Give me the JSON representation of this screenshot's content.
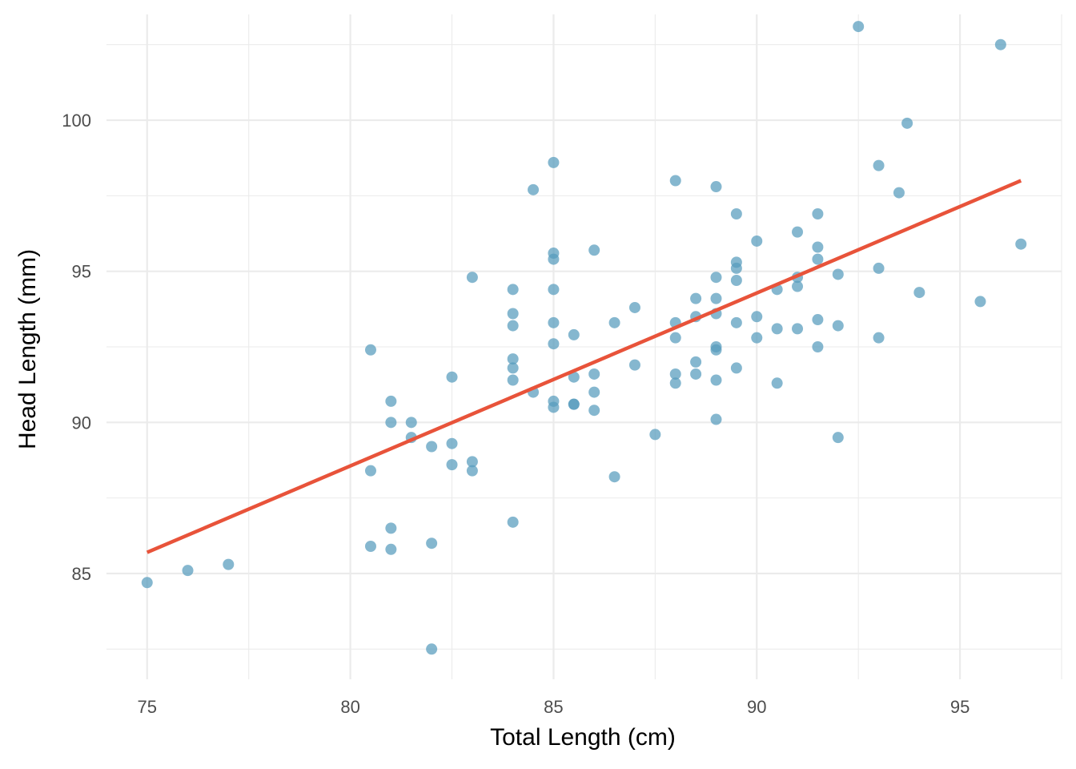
{
  "chart_data": {
    "type": "scatter",
    "title": "",
    "xlabel": "Total Length (cm)",
    "ylabel": "Head Length (mm)",
    "xlim": [
      74,
      97.5
    ],
    "ylim": [
      81.5,
      103.5
    ],
    "x_ticks": [
      75,
      80,
      85,
      90,
      95
    ],
    "y_ticks": [
      85,
      90,
      95,
      100
    ],
    "x_tick_labels": [
      "75",
      "80",
      "85",
      "90",
      "95"
    ],
    "y_tick_labels": [
      "85",
      "90",
      "95",
      "100"
    ],
    "grid": true,
    "point_color": "#569bbd",
    "line_color": "#e8533a",
    "points": [
      [
        75.0,
        84.7
      ],
      [
        76.0,
        85.1
      ],
      [
        77.0,
        85.3
      ],
      [
        80.5,
        92.4
      ],
      [
        80.5,
        88.4
      ],
      [
        80.5,
        85.9
      ],
      [
        81.0,
        90.7
      ],
      [
        81.0,
        90.0
      ],
      [
        81.0,
        86.5
      ],
      [
        81.0,
        85.8
      ],
      [
        81.5,
        90.0
      ],
      [
        81.5,
        89.5
      ],
      [
        82.0,
        89.2
      ],
      [
        82.0,
        86.0
      ],
      [
        82.0,
        82.5
      ],
      [
        82.5,
        91.5
      ],
      [
        82.5,
        89.3
      ],
      [
        82.5,
        88.6
      ],
      [
        83.0,
        94.8
      ],
      [
        83.0,
        88.7
      ],
      [
        83.0,
        88.4
      ],
      [
        84.0,
        94.4
      ],
      [
        84.0,
        93.6
      ],
      [
        84.0,
        93.2
      ],
      [
        84.0,
        92.1
      ],
      [
        84.0,
        91.8
      ],
      [
        84.0,
        91.4
      ],
      [
        84.0,
        86.7
      ],
      [
        84.5,
        97.7
      ],
      [
        84.5,
        91.0
      ],
      [
        85.0,
        98.6
      ],
      [
        85.0,
        95.6
      ],
      [
        85.0,
        95.4
      ],
      [
        85.0,
        94.4
      ],
      [
        85.0,
        93.3
      ],
      [
        85.0,
        92.6
      ],
      [
        85.0,
        90.7
      ],
      [
        85.0,
        90.5
      ],
      [
        85.5,
        92.9
      ],
      [
        85.5,
        91.5
      ],
      [
        85.5,
        90.6
      ],
      [
        85.5,
        90.6
      ],
      [
        86.0,
        95.7
      ],
      [
        86.0,
        91.6
      ],
      [
        86.0,
        91.0
      ],
      [
        86.0,
        90.4
      ],
      [
        86.5,
        93.3
      ],
      [
        86.5,
        88.2
      ],
      [
        87.0,
        93.8
      ],
      [
        87.0,
        91.9
      ],
      [
        87.5,
        89.6
      ],
      [
        88.0,
        98.0
      ],
      [
        88.0,
        93.3
      ],
      [
        88.0,
        92.8
      ],
      [
        88.0,
        91.6
      ],
      [
        88.0,
        91.3
      ],
      [
        88.5,
        94.1
      ],
      [
        88.5,
        93.5
      ],
      [
        88.5,
        92.0
      ],
      [
        88.5,
        91.6
      ],
      [
        89.0,
        97.8
      ],
      [
        89.0,
        94.8
      ],
      [
        89.0,
        94.1
      ],
      [
        89.0,
        93.6
      ],
      [
        89.0,
        92.5
      ],
      [
        89.0,
        92.4
      ],
      [
        89.0,
        91.4
      ],
      [
        89.0,
        90.1
      ],
      [
        89.5,
        96.9
      ],
      [
        89.5,
        95.3
      ],
      [
        89.5,
        95.1
      ],
      [
        89.5,
        94.7
      ],
      [
        89.5,
        93.3
      ],
      [
        89.5,
        91.8
      ],
      [
        90.0,
        96.0
      ],
      [
        90.0,
        93.5
      ],
      [
        90.0,
        92.8
      ],
      [
        90.5,
        94.4
      ],
      [
        90.5,
        93.1
      ],
      [
        90.5,
        91.3
      ],
      [
        91.0,
        96.3
      ],
      [
        91.0,
        94.8
      ],
      [
        91.0,
        94.5
      ],
      [
        91.0,
        93.1
      ],
      [
        91.5,
        96.9
      ],
      [
        91.5,
        95.8
      ],
      [
        91.5,
        95.4
      ],
      [
        91.5,
        93.4
      ],
      [
        91.5,
        92.5
      ],
      [
        92.0,
        94.9
      ],
      [
        92.0,
        93.2
      ],
      [
        92.0,
        89.5
      ],
      [
        92.5,
        103.1
      ],
      [
        93.0,
        98.5
      ],
      [
        93.0,
        95.1
      ],
      [
        93.0,
        92.8
      ],
      [
        93.5,
        97.6
      ],
      [
        93.7,
        99.9
      ],
      [
        94.0,
        94.3
      ],
      [
        95.5,
        94.0
      ],
      [
        96.0,
        102.5
      ],
      [
        96.5,
        95.9
      ]
    ],
    "fit_line": {
      "x": [
        75.0,
        96.5
      ],
      "y": [
        85.7,
        98.0
      ]
    }
  }
}
